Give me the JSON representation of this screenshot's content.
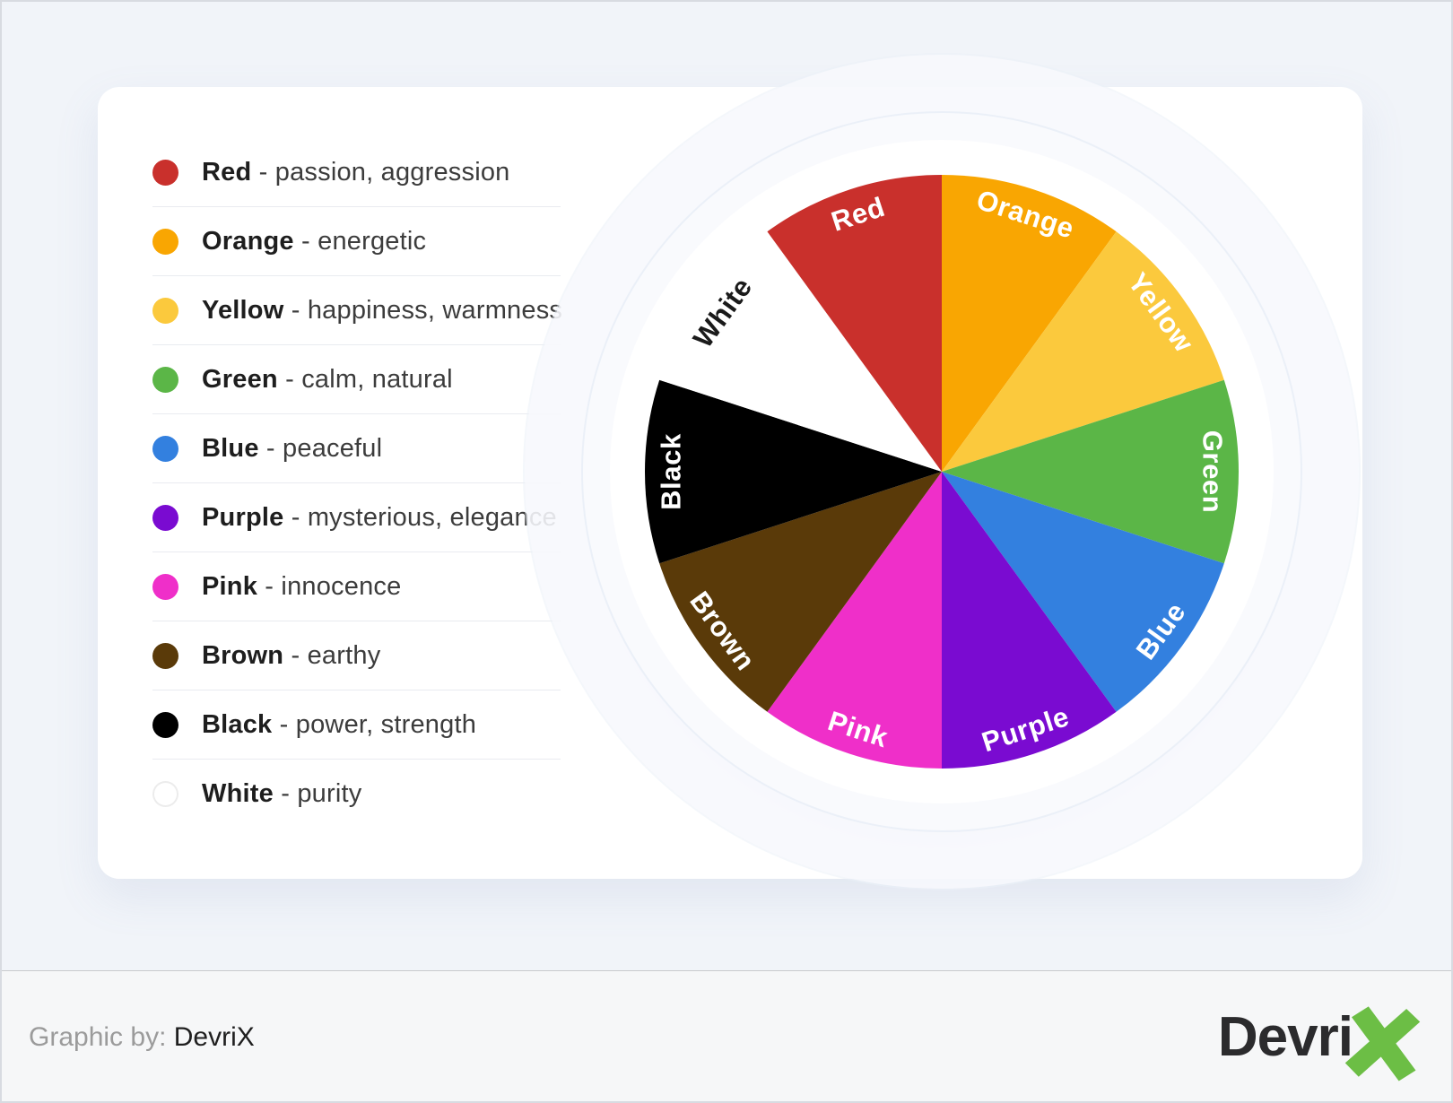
{
  "legend": {
    "dash": " - ",
    "items": [
      {
        "name": "Red",
        "description": "passion, aggression",
        "color": "#C9302C"
      },
      {
        "name": "Orange",
        "description": "energetic",
        "color": "#F9A602"
      },
      {
        "name": "Yellow",
        "description": "happiness, warmness",
        "color": "#FBC93D"
      },
      {
        "name": "Green",
        "description": "calm, natural",
        "color": "#5BB647"
      },
      {
        "name": "Blue",
        "description": "peaceful",
        "color": "#3380DF"
      },
      {
        "name": "Purple",
        "description": "mysterious, elegance",
        "color": "#7A0BD1"
      },
      {
        "name": "Pink",
        "description": "innocence",
        "color": "#EF2FC9"
      },
      {
        "name": "Brown",
        "description": "earthy",
        "color": "#5A3A09"
      },
      {
        "name": "Black",
        "description": "power, strength",
        "color": "#000000"
      },
      {
        "name": "White",
        "description": "purity",
        "color": "#FFFFFF",
        "swatch_border": "#ECECEC"
      }
    ]
  },
  "chart_data": {
    "type": "pie",
    "title": "",
    "categories": [
      "Orange",
      "Yellow",
      "Green",
      "Blue",
      "Purple",
      "Pink",
      "Brown",
      "Black",
      "White",
      "Red"
    ],
    "values": [
      10,
      10,
      10,
      10,
      10,
      10,
      10,
      10,
      10,
      10
    ],
    "unit": "percent",
    "start_angle_deg": 0,
    "direction": "clockwise",
    "legend_position": "left",
    "slices": [
      {
        "label": "Orange",
        "value": 10,
        "color": "#F9A602",
        "label_color": "#FFFFFF"
      },
      {
        "label": "Yellow",
        "value": 10,
        "color": "#FBC93D",
        "label_color": "#FFFFFF"
      },
      {
        "label": "Green",
        "value": 10,
        "color": "#5BB647",
        "label_color": "#FFFFFF"
      },
      {
        "label": "Blue",
        "value": 10,
        "color": "#3380DF",
        "label_color": "#FFFFFF"
      },
      {
        "label": "Purple",
        "value": 10,
        "color": "#7A0BD1",
        "label_color": "#FFFFFF"
      },
      {
        "label": "Pink",
        "value": 10,
        "color": "#EF2FC9",
        "label_color": "#FFFFFF"
      },
      {
        "label": "Brown",
        "value": 10,
        "color": "#5A3A09",
        "label_color": "#FFFFFF"
      },
      {
        "label": "Black",
        "value": 10,
        "color": "#000000",
        "label_color": "#FFFFFF"
      },
      {
        "label": "White",
        "value": 10,
        "color": "#FFFFFF",
        "label_color": "#1A1A1A"
      },
      {
        "label": "Red",
        "value": 10,
        "color": "#C9302C",
        "label_color": "#FFFFFF"
      }
    ]
  },
  "footer": {
    "credit_label": "Graphic by:",
    "credit_value": " DevriX",
    "logo_text": "Devri",
    "logo_x": "X",
    "logo_green": "#6CBE45"
  }
}
